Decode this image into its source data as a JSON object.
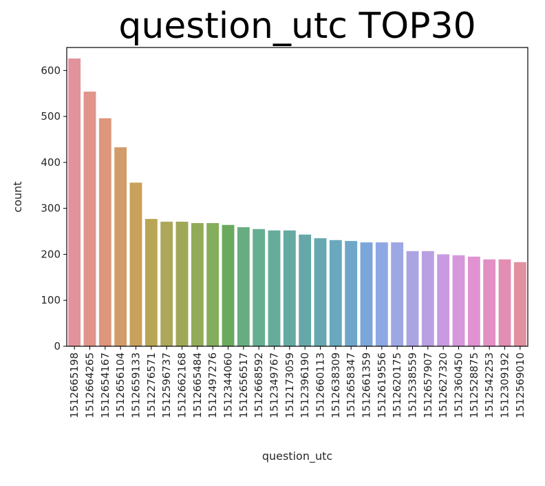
{
  "chart_data": {
    "type": "bar",
    "title": "question_utc TOP30",
    "xlabel": "question_utc",
    "ylabel": "count",
    "ylim": [
      0,
      650
    ],
    "yticks": [
      0,
      100,
      200,
      300,
      400,
      500,
      600
    ],
    "grid": false,
    "categories": [
      "1512665198",
      "1512664265",
      "1512654167",
      "1512656104",
      "1512659133",
      "1512276571",
      "1512596737",
      "1512662168",
      "1512665484",
      "1512497276",
      "1512344060",
      "1512656517",
      "1512668592",
      "1512349767",
      "1512173059",
      "1512396190",
      "1512660113",
      "1512638309",
      "1512658347",
      "1512661359",
      "1512619556",
      "1512620175",
      "1512538559",
      "1512657907",
      "1512627320",
      "1512360450",
      "1512528875",
      "1512542253",
      "1512309192",
      "1512569010"
    ],
    "values": [
      626,
      554,
      496,
      433,
      356,
      277,
      271,
      271,
      268,
      268,
      264,
      259,
      255,
      252,
      252,
      243,
      235,
      231,
      229,
      226,
      226,
      226,
      207,
      207,
      200,
      198,
      195,
      189,
      189,
      183
    ],
    "colors": [
      "#e1929b",
      "#e0948a",
      "#dc977c",
      "#d29c6a",
      "#c9a15c",
      "#b9a556",
      "#aca75a",
      "#a0a857",
      "#93aa58",
      "#84ad5c",
      "#6ba95e",
      "#68ad82",
      "#66ae91",
      "#66ac9a",
      "#66aba2",
      "#66a8a8",
      "#67a8b0",
      "#6aa8bd",
      "#6fa7ca",
      "#7ba6d9",
      "#8da8e3",
      "#9ca7e3",
      "#aba4e2",
      "#b9a0e2",
      "#c99ae1",
      "#d698dc",
      "#e092d2",
      "#e28fc3",
      "#e28eb3",
      "#e1909f"
    ]
  }
}
